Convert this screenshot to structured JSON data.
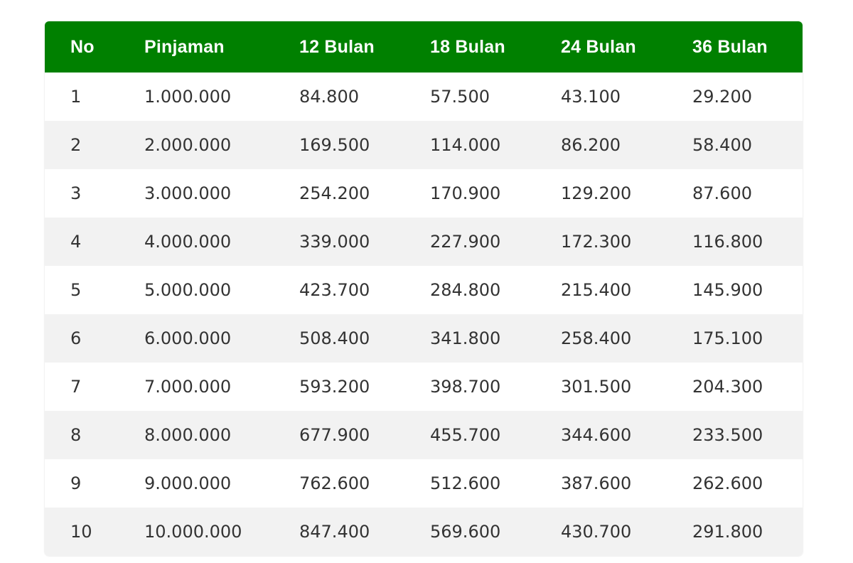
{
  "table": {
    "headers": [
      "No",
      "Pinjaman",
      "12 Bulan",
      "18 Bulan",
      "24 Bulan",
      "36 Bulan"
    ],
    "rows": [
      [
        "1",
        "1.000.000",
        "84.800",
        "57.500",
        "43.100",
        "29.200"
      ],
      [
        "2",
        "2.000.000",
        "169.500",
        "114.000",
        "86.200",
        "58.400"
      ],
      [
        "3",
        "3.000.000",
        "254.200",
        "170.900",
        "129.200",
        "87.600"
      ],
      [
        "4",
        "4.000.000",
        "339.000",
        "227.900",
        "172.300",
        "116.800"
      ],
      [
        "5",
        "5.000.000",
        "423.700",
        "284.800",
        "215.400",
        "145.900"
      ],
      [
        "6",
        "6.000.000",
        "508.400",
        "341.800",
        "258.400",
        "175.100"
      ],
      [
        "7",
        "7.000.000",
        "593.200",
        "398.700",
        "301.500",
        "204.300"
      ],
      [
        "8",
        "8.000.000",
        "677.900",
        "455.700",
        "344.600",
        "233.500"
      ],
      [
        "9",
        "9.000.000",
        "762.600",
        "512.600",
        "387.600",
        "262.600"
      ],
      [
        "10",
        "10.000.000",
        "847.400",
        "569.600",
        "430.700",
        "291.800"
      ]
    ]
  },
  "colors": {
    "header_bg": "#008000",
    "header_text": "#ffffff",
    "row_alt_bg": "#f2f2f2"
  }
}
